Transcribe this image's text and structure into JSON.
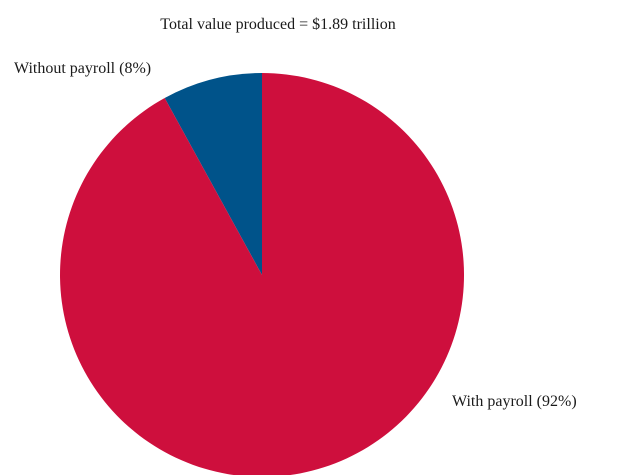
{
  "chart_data": {
    "type": "pie",
    "title": "Total value produced = $1.89 trillion",
    "slices": [
      {
        "label": "Without payroll (8%)",
        "value": 8,
        "color": "#00538a"
      },
      {
        "label": "With payroll (92%)",
        "value": 92,
        "color": "#ce0f3d"
      }
    ],
    "start_angle_deg": 0,
    "direction": "counterclockwise-from-top"
  }
}
